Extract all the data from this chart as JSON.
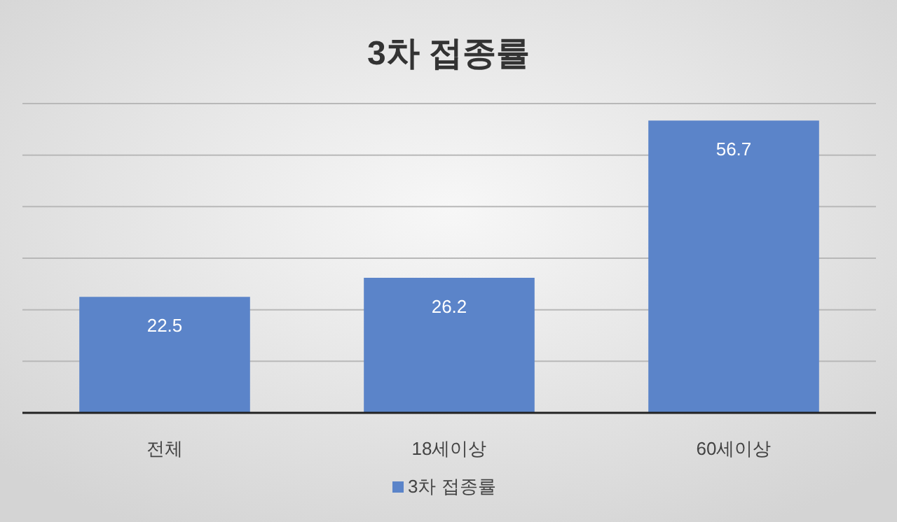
{
  "chart_data": {
    "type": "bar",
    "title": "3차 접종률",
    "categories": [
      "전체",
      "18세이상",
      "60세이상"
    ],
    "series": [
      {
        "name": "3차 접종률",
        "color": "#5b84c9",
        "values": [
          22.5,
          26.2,
          56.7
        ]
      }
    ],
    "ylim": [
      0,
      60
    ],
    "yticks": [
      {
        "value": 0,
        "label": null
      },
      {
        "value": 10,
        "label": null
      },
      {
        "value": 20,
        "label": null
      },
      {
        "value": 30,
        "label": null
      },
      {
        "value": 40,
        "label": null
      },
      {
        "value": 50,
        "label": null
      },
      {
        "value": 60,
        "label": null
      }
    ],
    "grid": "y",
    "legend": "bottom",
    "data_labels": true
  }
}
